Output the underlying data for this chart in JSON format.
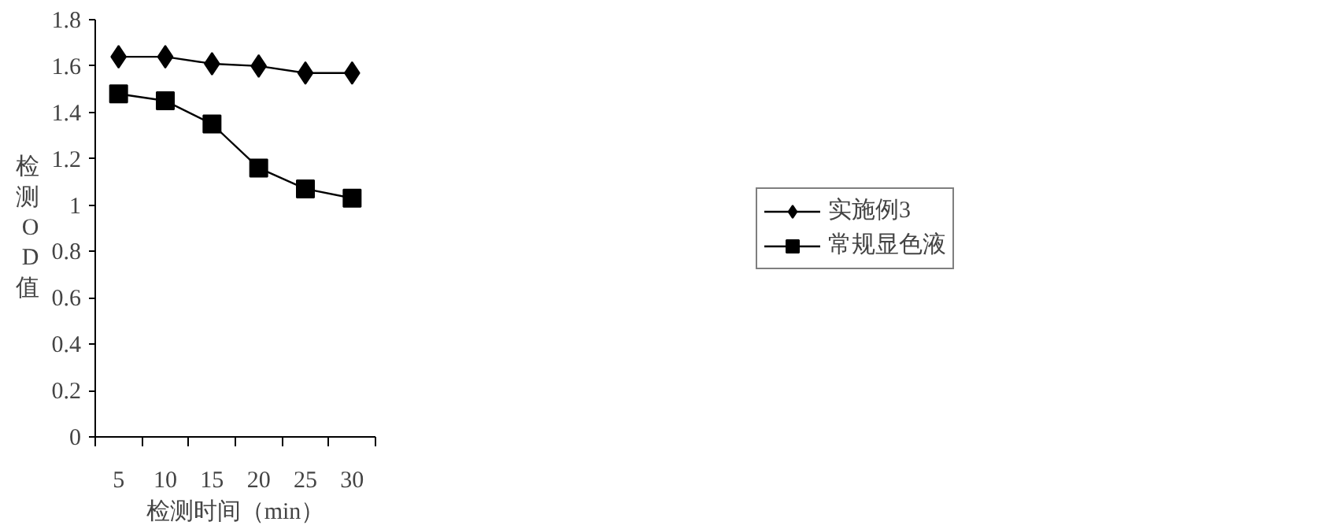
{
  "chart_data": {
    "type": "line",
    "categories": [
      "5",
      "10",
      "15",
      "20",
      "25",
      "30"
    ],
    "xlabel": "检测时间（min）",
    "ylabel": "检测OD值",
    "ylim": [
      0,
      1.8
    ],
    "yticks": [
      0,
      0.2,
      0.4,
      0.6,
      0.8,
      1,
      1.2,
      1.4,
      1.6,
      1.8
    ],
    "grid": false,
    "legend": "right",
    "series": [
      {
        "name": "实施例3",
        "color": "#000000",
        "marker": "diamond",
        "values": [
          1.64,
          1.64,
          1.61,
          1.6,
          1.57,
          1.57
        ]
      },
      {
        "name": "常规显色液",
        "color": "#000000",
        "marker": "square",
        "values": [
          1.48,
          1.45,
          1.35,
          1.16,
          1.07,
          1.03
        ]
      }
    ]
  }
}
